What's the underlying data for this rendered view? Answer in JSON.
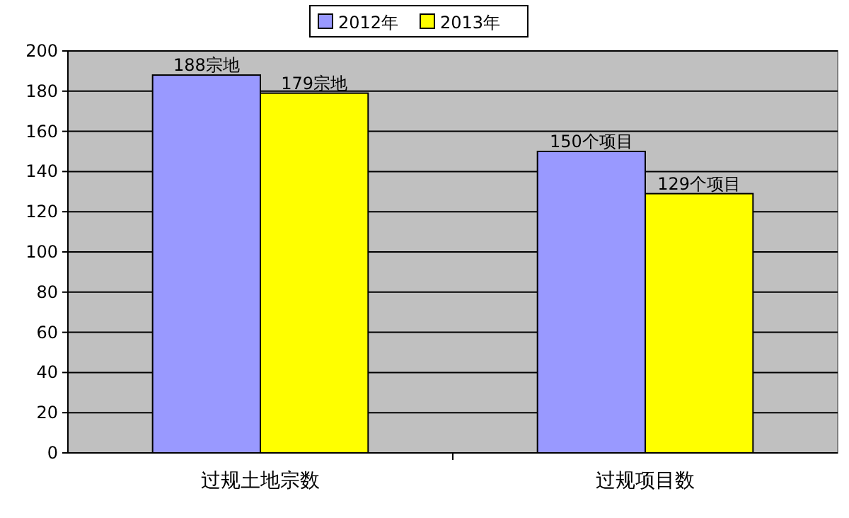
{
  "chart_data": {
    "type": "bar",
    "categories": [
      "过规土地宗数",
      "过规项目数"
    ],
    "series": [
      {
        "name": "2012年",
        "color": "#9999ff",
        "values": [
          188,
          150
        ],
        "value_labels": [
          "188宗地",
          "150个项目"
        ]
      },
      {
        "name": "2013年",
        "color": "#ffff00",
        "values": [
          179,
          129
        ],
        "value_labels": [
          "179宗地",
          "129个项目"
        ]
      }
    ],
    "ylim": [
      0,
      200
    ],
    "yticks": [
      0,
      20,
      40,
      60,
      80,
      100,
      120,
      140,
      160,
      180,
      200
    ],
    "grid": "y",
    "legend": "top"
  }
}
